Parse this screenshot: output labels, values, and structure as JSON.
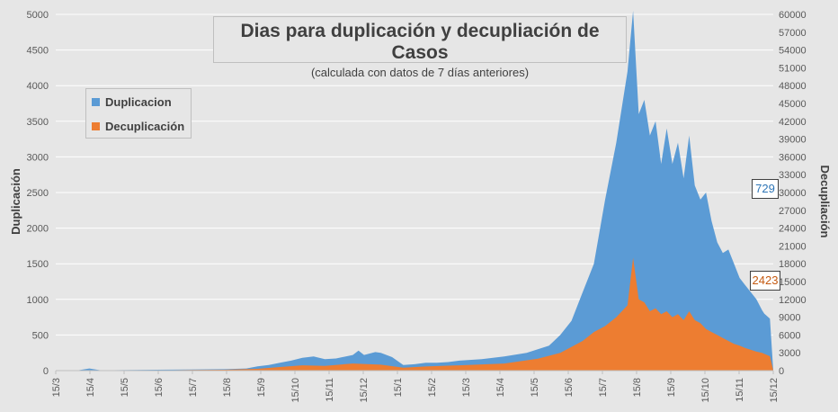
{
  "chart_data": {
    "type": "area",
    "title": "Dias para duplicación y decupliación de Casos",
    "subtitle": "(calculada con datos de 7 días anteriores)",
    "ylabel": "Duplicación",
    "y2label": "Decupliación",
    "ylim": [
      0,
      5000
    ],
    "y2lim": [
      0,
      60000
    ],
    "yticks": [
      "0",
      "500",
      "1000",
      "1500",
      "2000",
      "2500",
      "3000",
      "3500",
      "4000",
      "4500",
      "5000"
    ],
    "y2ticks": [
      "0",
      "3000",
      "6000",
      "9000",
      "12000",
      "15000",
      "18000",
      "21000",
      "24000",
      "27000",
      "30000",
      "33000",
      "36000",
      "39000",
      "42000",
      "45000",
      "48000",
      "51000",
      "54000",
      "57000",
      "60000"
    ],
    "xticks": [
      "15/3",
      "15/4",
      "15/5",
      "15/6",
      "15/7",
      "15/8",
      "15/9",
      "15/10",
      "15/11",
      "15/12",
      "15/1",
      "15/2",
      "15/3",
      "15/4",
      "15/5",
      "15/6",
      "15/7",
      "15/8",
      "15/9",
      "15/10",
      "15/11",
      "15/12"
    ],
    "legend_position": "top-left",
    "grid": true,
    "series": [
      {
        "name": "Duplicacion",
        "axis": "left",
        "color": "#5b9bd5",
        "x": [
          0,
          20,
          30,
          40,
          60,
          90,
          120,
          150,
          170,
          180,
          190,
          200,
          210,
          220,
          230,
          240,
          250,
          265,
          270,
          275,
          285,
          290,
          300,
          310,
          320,
          330,
          340,
          350,
          360,
          380,
          400,
          420,
          440,
          450,
          460,
          470,
          480,
          490,
          500,
          510,
          515,
          520,
          525,
          530,
          535,
          540,
          545,
          550,
          555,
          560,
          565,
          570,
          575,
          580,
          585,
          590,
          595,
          600,
          605,
          610,
          615,
          620,
          625,
          630,
          632,
          637,
          640
        ],
        "values": [
          0,
          5,
          30,
          5,
          8,
          12,
          15,
          20,
          30,
          60,
          80,
          110,
          140,
          180,
          200,
          160,
          170,
          220,
          280,
          220,
          260,
          250,
          190,
          80,
          90,
          110,
          110,
          120,
          140,
          160,
          200,
          250,
          350,
          500,
          700,
          1100,
          1500,
          2400,
          3200,
          4200,
          5050,
          3600,
          3800,
          3300,
          3500,
          2900,
          3400,
          2900,
          3200,
          2700,
          3300,
          2600,
          2400,
          2500,
          2100,
          1800,
          1650,
          1700,
          1500,
          1300,
          1200,
          1100,
          1000,
          850,
          800,
          729,
          0
        ]
      },
      {
        "name": "Decuplicación",
        "axis": "right",
        "color": "#ed7d31",
        "x": [
          0,
          90,
          120,
          150,
          180,
          200,
          220,
          240,
          265,
          290,
          310,
          330,
          360,
          400,
          430,
          450,
          460,
          470,
          480,
          490,
          500,
          510,
          515,
          520,
          525,
          530,
          535,
          540,
          545,
          550,
          555,
          560,
          565,
          570,
          575,
          580,
          585,
          590,
          595,
          600,
          605,
          610,
          615,
          620,
          625,
          630,
          637,
          640
        ],
        "values": [
          0,
          50,
          100,
          150,
          300,
          600,
          900,
          800,
          1200,
          1000,
          500,
          700,
          900,
          1200,
          2000,
          3000,
          4000,
          5000,
          6500,
          7500,
          9000,
          11000,
          19000,
          12000,
          11500,
          10000,
          10500,
          9500,
          10000,
          9000,
          9500,
          8500,
          10000,
          8500,
          8000,
          7000,
          6500,
          6000,
          5500,
          5000,
          4500,
          4200,
          3800,
          3500,
          3200,
          3000,
          2423,
          0
        ]
      }
    ],
    "annotations": [
      {
        "text": "729",
        "series": "Duplicacion",
        "color": "#2e75b6"
      },
      {
        "text": "2423",
        "series": "Decuplicación",
        "color": "#c55a11"
      }
    ]
  }
}
